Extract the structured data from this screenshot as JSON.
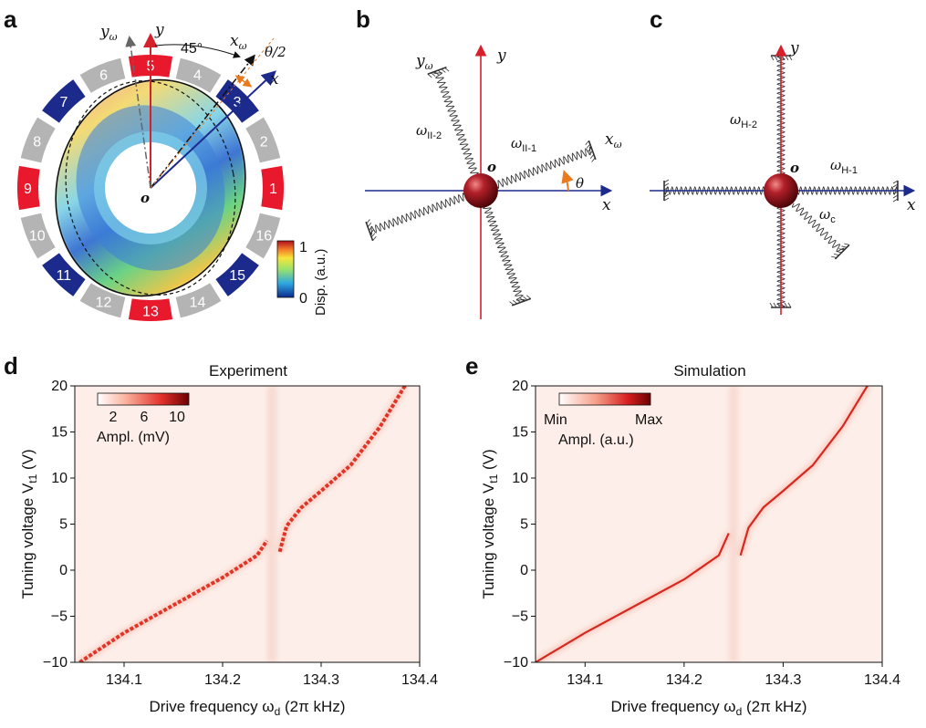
{
  "panels": {
    "a": {
      "letter": "a",
      "angle_label": "45°",
      "theta_half_label": "θ/2",
      "axis_labels": {
        "y": "y",
        "y_omega_base": "y",
        "y_omega_sub": "ω",
        "x": "x",
        "x_omega_base": "x",
        "x_omega_sub": "ω",
        "origin": "o"
      },
      "electrodes": [
        {
          "id": "1",
          "color": "#e8192c"
        },
        {
          "id": "2",
          "color": "#b4b4b4"
        },
        {
          "id": "3",
          "color": "#1c2a8c"
        },
        {
          "id": "4",
          "color": "#b4b4b4"
        },
        {
          "id": "5",
          "color": "#e8192c"
        },
        {
          "id": "6",
          "color": "#b4b4b4"
        },
        {
          "id": "7",
          "color": "#1c2a8c"
        },
        {
          "id": "8",
          "color": "#b4b4b4"
        },
        {
          "id": "9",
          "color": "#e8192c"
        },
        {
          "id": "10",
          "color": "#b4b4b4"
        },
        {
          "id": "11",
          "color": "#1c2a8c"
        },
        {
          "id": "12",
          "color": "#b4b4b4"
        },
        {
          "id": "13",
          "color": "#e8192c"
        },
        {
          "id": "14",
          "color": "#b4b4b4"
        },
        {
          "id": "15",
          "color": "#1c2a8c"
        },
        {
          "id": "16",
          "color": "#b4b4b4"
        }
      ],
      "colorbar": {
        "title": "Disp. (a.u.)",
        "max_label": "1",
        "min_label": "0"
      }
    },
    "b": {
      "letter": "b",
      "labels": {
        "y": "y",
        "y_omega_base": "y",
        "y_omega_sub": "ω",
        "x": "x",
        "x_omega_base": "x",
        "x_omega_sub": "ω",
        "origin": "o",
        "theta": "θ",
        "omega_1_base": "ω",
        "omega_1_sub": "II-1",
        "omega_2_base": "ω",
        "omega_2_sub": "II-2"
      }
    },
    "c": {
      "letter": "c",
      "labels": {
        "y": "y",
        "x": "x",
        "origin": "o",
        "omega_1_base": "ω",
        "omega_1_sub": "H-1",
        "omega_2_base": "ω",
        "omega_2_sub": "H-2",
        "omega_c_base": "ω",
        "omega_c_sub": "c"
      }
    },
    "d": {
      "letter": "d",
      "title": "Experiment",
      "colorbar": {
        "ticks": [
          "2",
          "6",
          "10"
        ],
        "label": "Ampl. (mV)"
      }
    },
    "e": {
      "letter": "e",
      "title": "Simulation",
      "colorbar": {
        "min_label": "Min",
        "max_label": "Max",
        "label": "Ampl. (a.u.)"
      }
    }
  },
  "chart_data": [
    {
      "type": "heatmap",
      "title": "Experiment",
      "xlabel_base": "Drive frequency ω",
      "xlabel_sub": "d",
      "xlabel_tail": " (2π kHz)",
      "ylabel_base": "Tuning voltage V",
      "ylabel_sub": "t1",
      "ylabel_tail": " (V)",
      "xlim": [
        134.05,
        134.4
      ],
      "ylim": [
        -10,
        20
      ],
      "xticks": [
        "134.1",
        "134.2",
        "134.3",
        "134.4"
      ],
      "xtick_values": [
        134.1,
        134.2,
        134.3,
        134.4
      ],
      "yticks": [
        "−10",
        "−5",
        "0",
        "5",
        "10",
        "15",
        "20"
      ],
      "ytick_values": [
        -10,
        -5,
        0,
        5,
        10,
        15,
        20
      ],
      "lower_branch": [
        [
          134.055,
          -10
        ],
        [
          134.1,
          -6.8
        ],
        [
          134.15,
          -3.8
        ],
        [
          134.2,
          -0.8
        ],
        [
          134.235,
          1.6
        ],
        [
          134.245,
          3.2
        ]
      ],
      "upper_branch": [
        [
          134.258,
          2.0
        ],
        [
          134.265,
          4.8
        ],
        [
          134.28,
          6.8
        ],
        [
          134.3,
          8.6
        ],
        [
          134.33,
          11.4
        ],
        [
          134.36,
          15.6
        ],
        [
          134.385,
          20
        ]
      ],
      "gap_frequency": 134.25
    },
    {
      "type": "heatmap",
      "title": "Simulation",
      "xlabel_base": "Drive frequency ω",
      "xlabel_sub": "d",
      "xlabel_tail": " (2π kHz)",
      "ylabel_base": "Tuning voltage V",
      "ylabel_sub": "t1",
      "ylabel_tail": " (V)",
      "xlim": [
        134.05,
        134.4
      ],
      "ylim": [
        -10,
        20
      ],
      "xticks": [
        "134.1",
        "134.2",
        "134.3",
        "134.4"
      ],
      "xtick_values": [
        134.1,
        134.2,
        134.3,
        134.4
      ],
      "yticks": [
        "−10",
        "−5",
        "0",
        "5",
        "10",
        "15",
        "20"
      ],
      "ytick_values": [
        -10,
        -5,
        0,
        5,
        10,
        15,
        20
      ],
      "lower_branch": [
        [
          134.05,
          -10
        ],
        [
          134.1,
          -6.8
        ],
        [
          134.15,
          -3.9
        ],
        [
          134.2,
          -1.0
        ],
        [
          134.235,
          1.6
        ],
        [
          134.245,
          4.0
        ]
      ],
      "upper_branch": [
        [
          134.257,
          1.6
        ],
        [
          134.265,
          4.6
        ],
        [
          134.28,
          6.8
        ],
        [
          134.3,
          8.6
        ],
        [
          134.33,
          11.4
        ],
        [
          134.36,
          15.6
        ],
        [
          134.385,
          20
        ]
      ],
      "gap_frequency": 134.25
    }
  ]
}
